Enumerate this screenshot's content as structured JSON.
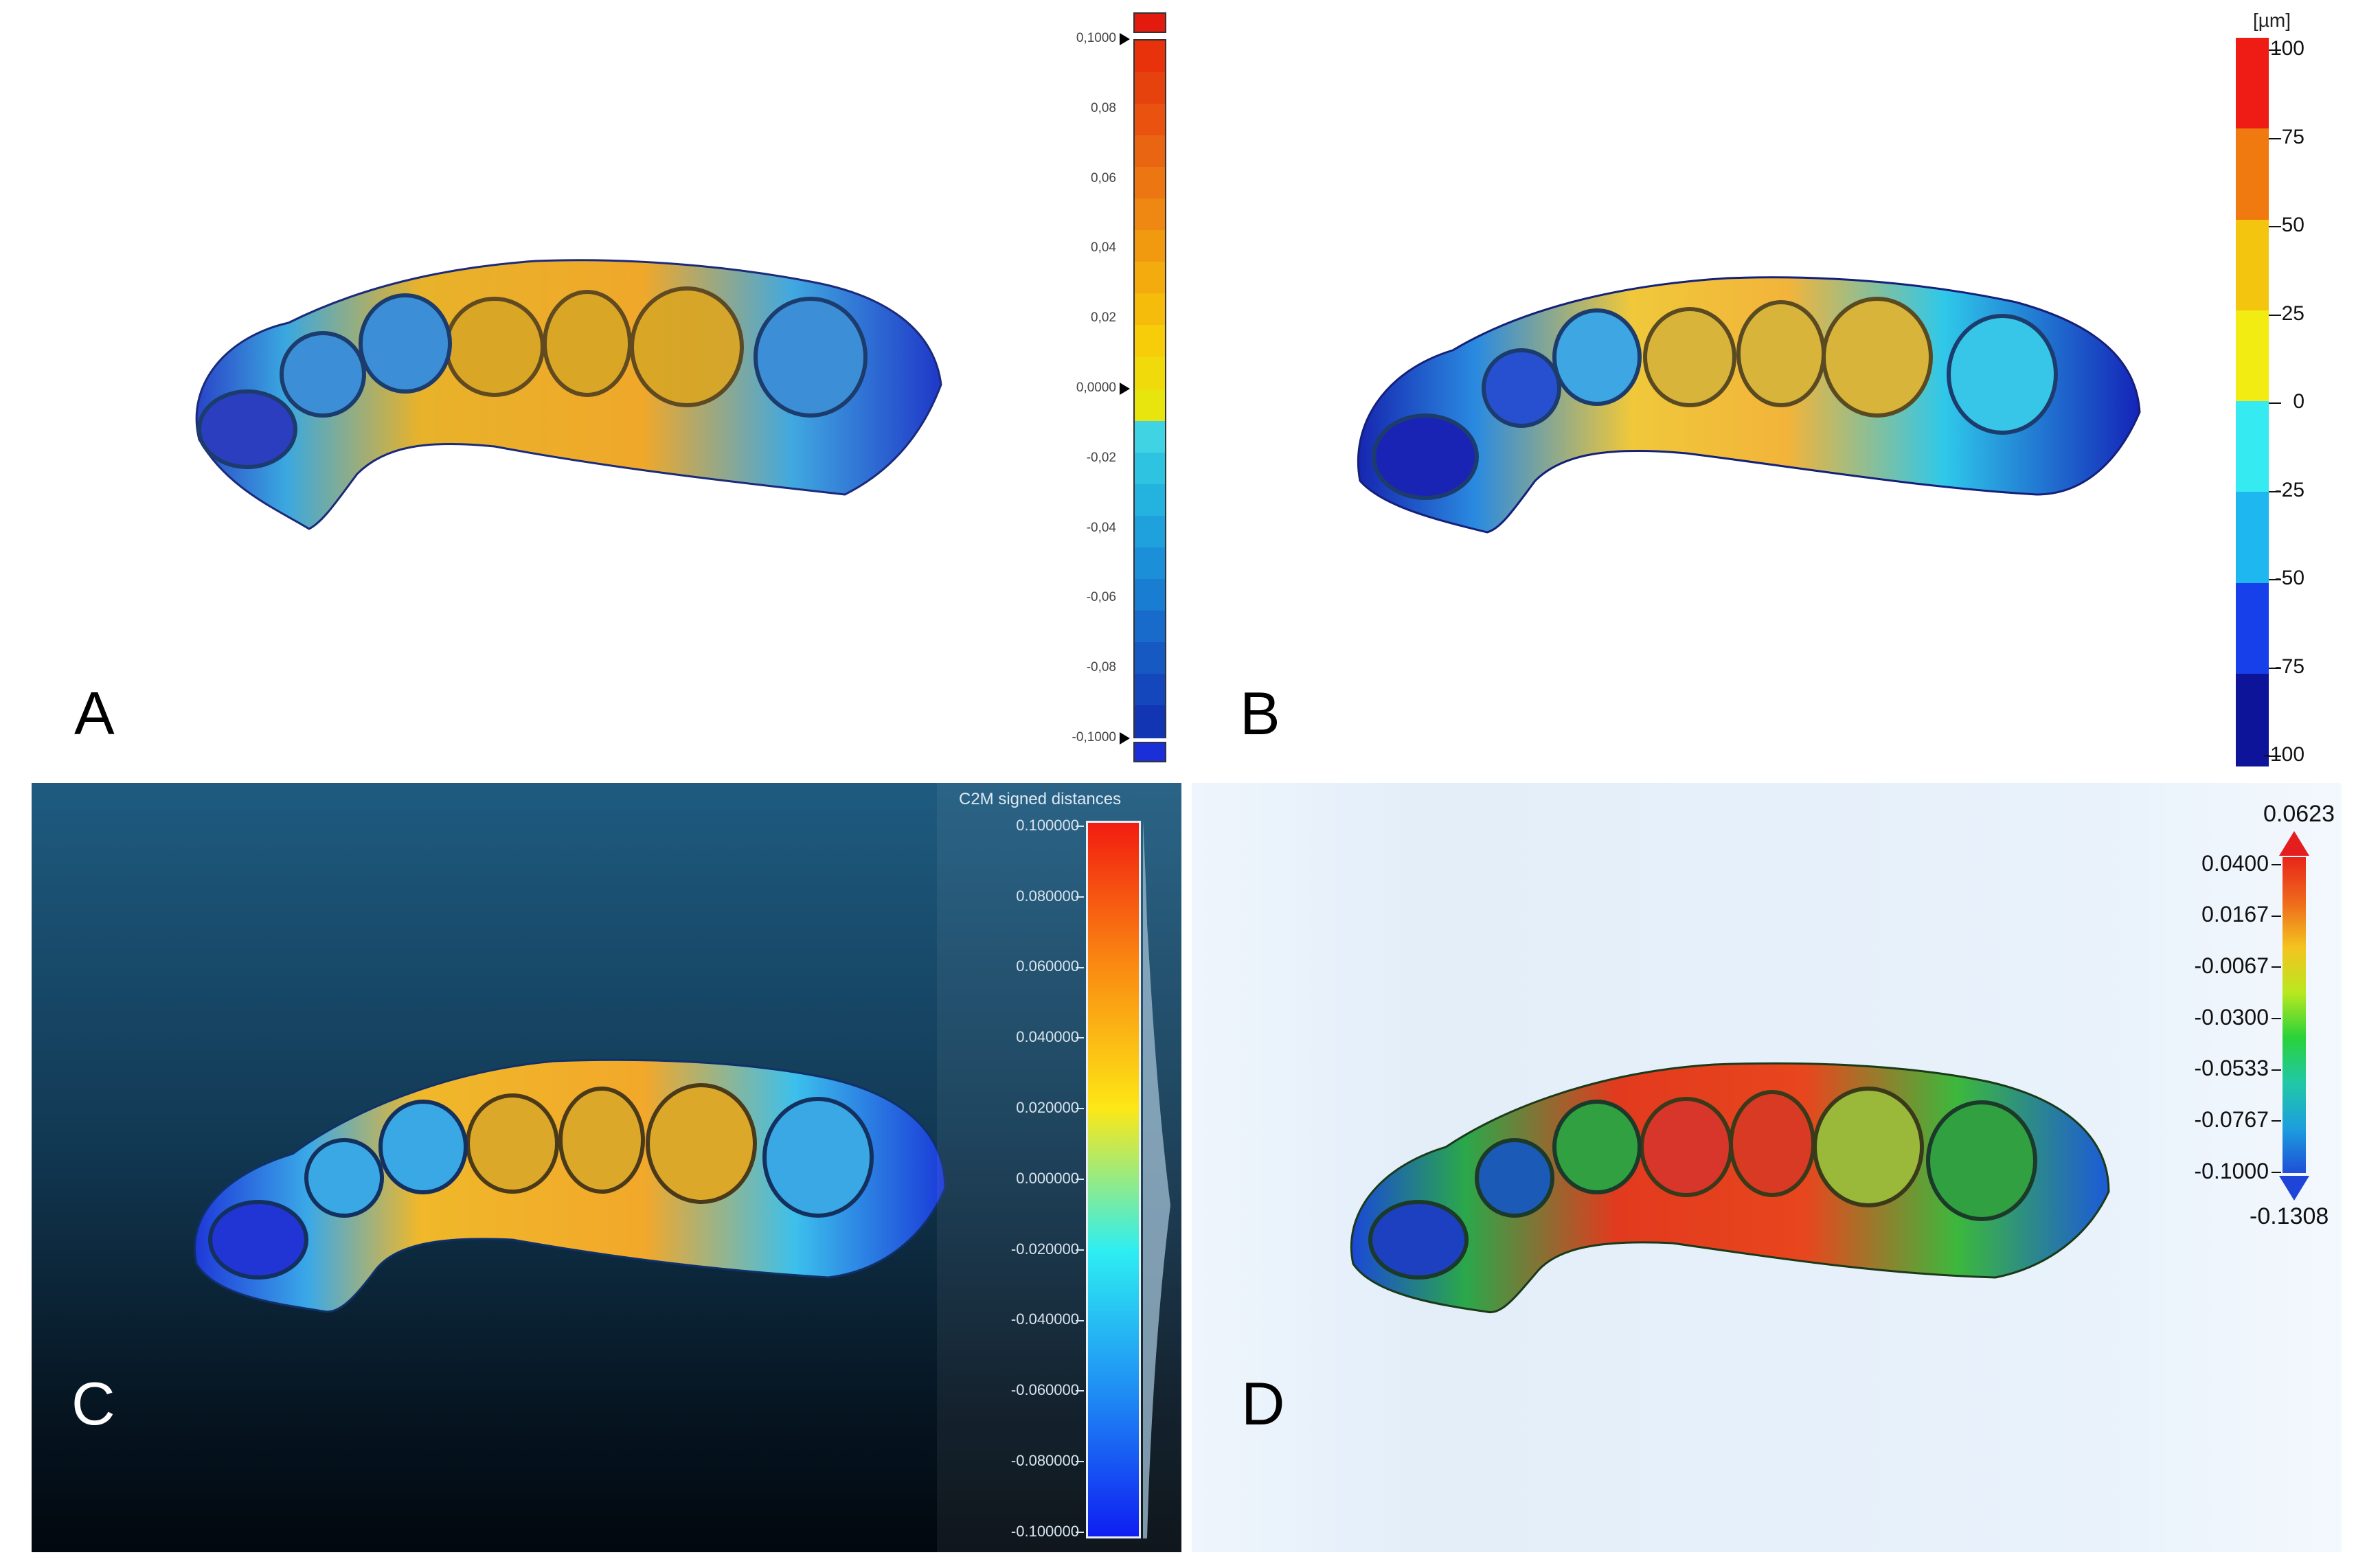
{
  "panels": {
    "a": {
      "letter": "A",
      "scale": {
        "labels": [
          "0,1000",
          "0,08",
          "0,06",
          "0,04",
          "0,02",
          "0,0000",
          "-0,02",
          "-0,04",
          "-0,06",
          "-0,08",
          "-0,1000"
        ],
        "over_color": "#e31b0e",
        "under_color": "#1b2fd8",
        "colors": [
          "#e8320c",
          "#e6420d",
          "#e9530f",
          "#ea6511",
          "#ec7612",
          "#ee8812",
          "#f19a10",
          "#f3ab0e",
          "#f5bc0c",
          "#f7cd0a",
          "#f0da0b",
          "#e8e40e",
          "#3fd3e4",
          "#2fc3e2",
          "#24b2df",
          "#1ea1dc",
          "#1b8fd7",
          "#197dd1",
          "#186bca",
          "#1759c3",
          "#1447bc",
          "#1235b3"
        ]
      }
    },
    "b": {
      "letter": "B",
      "scale": {
        "unit": "[µm]",
        "labels": [
          "100",
          "75",
          "50",
          "25",
          "0",
          "-25",
          "-50",
          "-75",
          "-100"
        ],
        "colors": [
          "#ee1c14",
          "#f07a10",
          "#f4c50e",
          "#f2ec12",
          "#35eaf0",
          "#1fb7ef",
          "#1840ea",
          "#0e149a"
        ]
      }
    },
    "c": {
      "letter": "C",
      "scale": {
        "title": "C2M signed distances",
        "labels": [
          "0.100000",
          "0.080000",
          "0.060000",
          "0.040000",
          "0.020000",
          "0.000000",
          "-0.020000",
          "-0.040000",
          "-0.060000",
          "-0.080000",
          "-0.100000"
        ],
        "colors": [
          "#f21c10",
          "#fa8a12",
          "#fde716",
          "#2deef2",
          "#1f8cf4",
          "#0f1ef2"
        ]
      }
    },
    "d": {
      "letter": "D",
      "scale": {
        "max": "0.0623",
        "min": "-0.1308",
        "labels": [
          "0.0400",
          "0.0167",
          "-0.0067",
          "-0.0300",
          "-0.0533",
          "-0.0767",
          "-0.1000"
        ],
        "max_color": "#e41e1e",
        "min_color": "#1f45d8",
        "colors": [
          "#e8251a",
          "#ee6a1c",
          "#f4c31f",
          "#b9e81f",
          "#29d23a",
          "#21c8a6",
          "#1c9fdc",
          "#1e4fd8"
        ]
      }
    }
  }
}
